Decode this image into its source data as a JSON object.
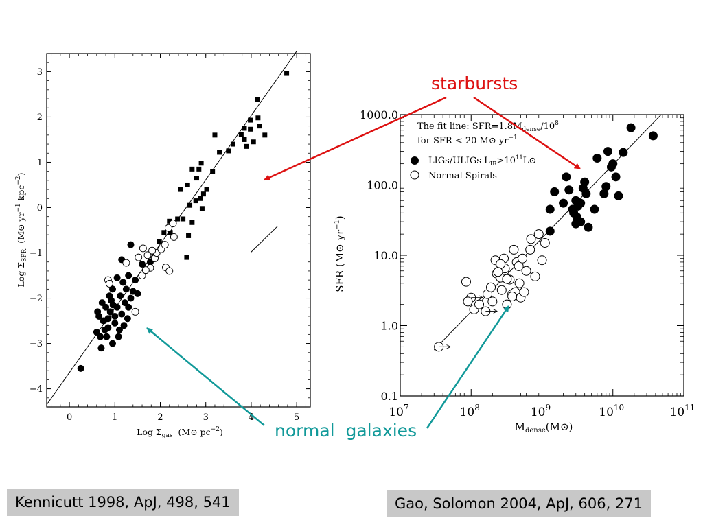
{
  "colors": {
    "starburst_arrow": "#dd1111",
    "normal_arrow": "#119999"
  },
  "annotations": {
    "starbursts": "starbursts",
    "normal_galaxies": "normal  galaxies"
  },
  "citations": {
    "left": "Kennicutt 1998, ApJ, 498, 541",
    "right": "Gao, Solomon 2004, ApJ, 606, 271"
  },
  "chart_data": [
    {
      "type": "scatter",
      "title": "",
      "xlabel": "Log Σgas  (M⊙ pc⁻²)",
      "xlabel_parts": {
        "main": "Log Σ",
        "sub": "gas",
        "unit": "(M⊙ pc",
        "sup": "−2",
        "close": ")"
      },
      "ylabel": "Log ΣSFR  (M⊙ yr⁻¹ kpc⁻²)",
      "ylabel_parts": {
        "main": "Log Σ",
        "sub": "SFR",
        "unit1": "(M⊙ yr",
        "sup1": "−1",
        "unit2": " kpc",
        "sup2": "−2",
        "close": ")"
      },
      "xlim": [
        -0.5,
        5.3
      ],
      "ylim": [
        -4.4,
        3.4
      ],
      "xticks": [
        0,
        1,
        2,
        3,
        4,
        5
      ],
      "yticks": [
        -4,
        -3,
        -2,
        -1,
        0,
        1,
        2,
        3
      ],
      "xtick_labels": [
        "0",
        "1",
        "2",
        "3",
        "4",
        "5"
      ],
      "ytick_labels": [
        "−4",
        "−3",
        "−2",
        "−1",
        "0",
        "1",
        "2",
        "3"
      ],
      "fit_line": [
        [
          -0.5,
          -4.35
        ],
        [
          5.0,
          3.45
        ]
      ],
      "error_bar_segment": [
        [
          3.99,
          -0.99
        ],
        [
          4.58,
          -0.41
        ]
      ],
      "series": [
        {
          "name": "starbursts",
          "marker": "filled-square",
          "points": [
            [
              4.78,
              2.96
            ],
            [
              4.13,
              2.38
            ],
            [
              3.98,
              1.93
            ],
            [
              4.18,
              1.8
            ],
            [
              4.15,
              1.98
            ],
            [
              3.85,
              1.75
            ],
            [
              3.98,
              1.73
            ],
            [
              4.3,
              1.6
            ],
            [
              3.5,
              1.25
            ],
            [
              3.85,
              1.5
            ],
            [
              3.9,
              1.35
            ],
            [
              3.78,
              1.62
            ],
            [
              4.05,
              1.45
            ],
            [
              3.6,
              1.4
            ],
            [
              3.3,
              1.22
            ],
            [
              2.9,
              0.98
            ],
            [
              2.85,
              0.85
            ],
            [
              2.7,
              0.85
            ],
            [
              3.15,
              0.8
            ],
            [
              3.02,
              0.4
            ],
            [
              2.95,
              0.3
            ],
            [
              2.6,
              0.5
            ],
            [
              2.45,
              0.4
            ],
            [
              2.88,
              0.2
            ],
            [
              2.78,
              0.15
            ],
            [
              2.65,
              0.05
            ],
            [
              2.92,
              -0.02
            ],
            [
              2.5,
              -0.25
            ],
            [
              2.2,
              -0.3
            ],
            [
              2.7,
              -0.33
            ],
            [
              2.22,
              -0.55
            ],
            [
              2.62,
              -0.62
            ],
            [
              2.58,
              -1.1
            ],
            [
              1.98,
              -0.75
            ],
            [
              2.08,
              -0.55
            ],
            [
              2.38,
              -0.25
            ],
            [
              3.2,
              1.6
            ],
            [
              2.8,
              0.65
            ]
          ]
        },
        {
          "name": "normal spirals (filled)",
          "marker": "filled-circle",
          "points": [
            [
              0.25,
              -3.55
            ],
            [
              0.7,
              -3.1
            ],
            [
              0.6,
              -2.75
            ],
            [
              0.95,
              -3.0
            ],
            [
              0.82,
              -2.85
            ],
            [
              0.65,
              -2.4
            ],
            [
              0.75,
              -2.5
            ],
            [
              0.85,
              -2.45
            ],
            [
              1.0,
              -2.55
            ],
            [
              1.1,
              -2.7
            ],
            [
              1.2,
              -2.6
            ],
            [
              0.9,
              -2.3
            ],
            [
              1.05,
              -2.2
            ],
            [
              1.3,
              -2.2
            ],
            [
              1.35,
              -2.0
            ],
            [
              0.8,
              -2.2
            ],
            [
              0.72,
              -2.1
            ],
            [
              0.62,
              -2.3
            ],
            [
              0.92,
              -2.05
            ],
            [
              1.12,
              -1.95
            ],
            [
              1.25,
              -1.8
            ],
            [
              1.4,
              -1.85
            ],
            [
              1.5,
              -1.9
            ],
            [
              1.18,
              -1.65
            ],
            [
              1.05,
              -1.55
            ],
            [
              1.3,
              -1.5
            ],
            [
              0.95,
              -1.8
            ],
            [
              0.85,
              -2.65
            ],
            [
              1.0,
              -2.4
            ],
            [
              1.15,
              -2.35
            ],
            [
              1.22,
              -2.1
            ],
            [
              0.78,
              -2.7
            ],
            [
              0.88,
              -1.95
            ],
            [
              1.45,
              -1.6
            ],
            [
              1.35,
              -0.82
            ],
            [
              1.6,
              -1.25
            ],
            [
              1.78,
              -1.2
            ],
            [
              1.15,
              -1.15
            ],
            [
              0.68,
              -2.85
            ],
            [
              1.08,
              -2.85
            ],
            [
              1.28,
              -2.45
            ],
            [
              0.96,
              -2.15
            ]
          ]
        },
        {
          "name": "normal spirals (open)",
          "marker": "open-circle",
          "points": [
            [
              0.85,
              -1.6
            ],
            [
              0.88,
              -1.68
            ],
            [
              1.45,
              -2.3
            ],
            [
              1.6,
              -1.5
            ],
            [
              1.78,
              -1.33
            ],
            [
              1.72,
              -1.05
            ],
            [
              1.88,
              -1.12
            ],
            [
              1.92,
              -1.0
            ],
            [
              2.02,
              -0.92
            ],
            [
              2.1,
              -0.82
            ],
            [
              2.18,
              -0.45
            ],
            [
              2.3,
              -0.65
            ],
            [
              2.12,
              -1.32
            ],
            [
              2.2,
              -1.4
            ],
            [
              1.52,
              -1.1
            ],
            [
              1.62,
              -0.9
            ],
            [
              1.25,
              -1.22
            ],
            [
              1.68,
              -1.38
            ],
            [
              2.28,
              -0.35
            ],
            [
              1.82,
              -0.95
            ]
          ]
        }
      ]
    },
    {
      "type": "scatter",
      "title": "",
      "xscale": "log",
      "yscale": "log",
      "xlabel": "Mdense(M⊙)",
      "xlabel_parts": {
        "main": "M",
        "sub": "dense",
        "unit": "(M⊙)"
      },
      "ylabel": "SFR (M⊙ yr⁻¹)",
      "ylabel_parts": {
        "main": "SFR (M⊙ yr",
        "sup": "−1",
        "close": ")"
      },
      "xlim": [
        10000000,
        100000000000
      ],
      "ylim": [
        0.1,
        1000
      ],
      "x_tick_exponents": [
        "7",
        "8",
        "9",
        "10",
        "11"
      ],
      "x_tick_base": "10",
      "ytick_labels": [
        "0.1",
        "1.0",
        "10.0",
        "100.0",
        "1000.0"
      ],
      "legend_position": "top-left",
      "fit_text": {
        "line1": "The fit line: SFR=1.8M",
        "line1_sub": "dense",
        "line1_rest": "/10",
        "line1_sup": "8",
        "line2": "for SFR < 20 M⊙ yr",
        "line2_sup": "−1"
      },
      "fit_line": [
        [
          30000000,
          0.45
        ],
        [
          48000000000,
          1000
        ]
      ],
      "legend": [
        {
          "marker": "filled-circle",
          "text": "LIGs/ULIGs L",
          "sub": "IR",
          "rest": ">10",
          "sup": "11",
          "tail": "L⊙"
        },
        {
          "marker": "open-circle",
          "text": "Normal Spirals"
        }
      ],
      "series": [
        {
          "name": "LIGs/ULIGs",
          "marker": "filled-circle",
          "points": [
            [
              18000000000,
              650
            ],
            [
              37000000000,
              500
            ],
            [
              8500000000,
              300
            ],
            [
              14000000000,
              290
            ],
            [
              6000000000,
              240
            ],
            [
              10000000000,
              200
            ],
            [
              9500000000,
              180
            ],
            [
              8000000000,
              95
            ],
            [
              11000000000,
              130
            ],
            [
              12000000000,
              70
            ],
            [
              7500000000,
              75
            ],
            [
              5500000000,
              45
            ],
            [
              4500000000,
              25
            ],
            [
              4000000000,
              110
            ],
            [
              3800000000,
              90
            ],
            [
              4200000000,
              75
            ],
            [
              3000000000,
              60
            ],
            [
              3200000000,
              50
            ],
            [
              2800000000,
              40
            ],
            [
              3500000000,
              30
            ],
            [
              3000000000,
              28
            ],
            [
              2200000000,
              130
            ],
            [
              2000000000,
              55
            ],
            [
              2400000000,
              85
            ],
            [
              1500000000,
              80
            ],
            [
              1300000000,
              45
            ],
            [
              1300000000,
              22
            ],
            [
              3500000000,
              55
            ],
            [
              2700000000,
              45
            ],
            [
              3100000000,
              35
            ]
          ]
        },
        {
          "name": "Normal Spirals",
          "marker": "open-circle",
          "points": [
            [
              35000000,
              0.5
            ],
            [
              85000000,
              4.2
            ],
            [
              100000000,
              2.5
            ],
            [
              90000000,
              2.2
            ],
            [
              110000000,
              1.7
            ],
            [
              130000000,
              2.0
            ],
            [
              160000000,
              1.6
            ],
            [
              170000000,
              2.8
            ],
            [
              190000000,
              3.5
            ],
            [
              200000000,
              2.2
            ],
            [
              220000000,
              8.5
            ],
            [
              230000000,
              5.5
            ],
            [
              260000000,
              4.8
            ],
            [
              270000000,
              3.2
            ],
            [
              290000000,
              9.0
            ],
            [
              300000000,
              6.5
            ],
            [
              320000000,
              2.0
            ],
            [
              350000000,
              4.5
            ],
            [
              380000000,
              2.8
            ],
            [
              400000000,
              12.0
            ],
            [
              420000000,
              3.0
            ],
            [
              440000000,
              8.0
            ],
            [
              470000000,
              7.0
            ],
            [
              480000000,
              4.0
            ],
            [
              500000000,
              2.5
            ],
            [
              530000000,
              9.0
            ],
            [
              560000000,
              3.0
            ],
            [
              600000000,
              6.0
            ],
            [
              680000000,
              12.0
            ],
            [
              700000000,
              17.0
            ],
            [
              800000000,
              5.0
            ],
            [
              900000000,
              20.0
            ],
            [
              1000000000,
              8.5
            ],
            [
              1100000000,
              15.0
            ],
            [
              260000000,
              7.5
            ],
            [
              240000000,
              5.8
            ],
            [
              320000000,
              4.6
            ],
            [
              380000000,
              2.6
            ]
          ]
        }
      ]
    }
  ]
}
